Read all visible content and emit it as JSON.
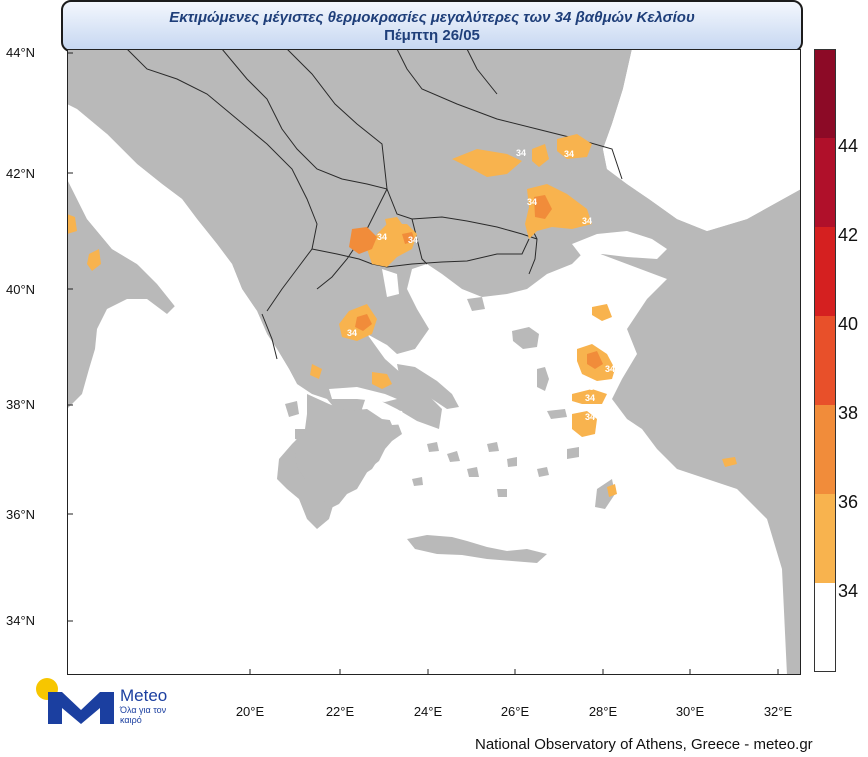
{
  "title": {
    "line1": "Εκτιμώμενες μέγιστες θερμοκρασίες μεγαλύτερες των 34 βαθμών Κελσίου",
    "line2": "Πέμπτη 26/05"
  },
  "map": {
    "latitudes": [
      "44°N",
      "42°N",
      "40°N",
      "38°N",
      "36°N",
      "34°N"
    ],
    "longitudes": [
      "20°E",
      "22°E",
      "24°E",
      "26°E",
      "28°E",
      "30°E",
      "32°E"
    ],
    "contour_labels": [
      "34",
      "34",
      "34",
      "34",
      "34",
      "34",
      "34",
      "34",
      "34",
      "34",
      "34"
    ],
    "colors": {
      "land": "#b9b9b9",
      "sea": "#ffffff",
      "border": "#2a2a2a",
      "c34_36": "#f8b34e",
      "c36_38": "#f18c3a"
    }
  },
  "colorbar": {
    "ticks": [
      "34",
      "36",
      "38",
      "40",
      "42",
      "44"
    ],
    "bands": [
      {
        "from": "",
        "to": "34",
        "color": "#ffffff"
      },
      {
        "from": "34",
        "to": "36",
        "color": "#f8b34e"
      },
      {
        "from": "36",
        "to": "38",
        "color": "#f18c3a"
      },
      {
        "from": "38",
        "to": "40",
        "color": "#e8502a"
      },
      {
        "from": "40",
        "to": "42",
        "color": "#d52020"
      },
      {
        "from": "42",
        "to": "44",
        "color": "#b0102a"
      },
      {
        "from": "44",
        "to": "",
        "color": "#8c0a26"
      }
    ]
  },
  "logo": {
    "name": "Meteo",
    "tagline": "Όλα για τον καιρό",
    "colors": {
      "sun": "#f7c600",
      "brand": "#1b3fa0"
    }
  },
  "footer": {
    "credit": "National Observatory of Athens, Greece - meteo.gr"
  }
}
